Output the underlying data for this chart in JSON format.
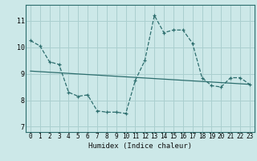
{
  "xlabel": "Humidex (Indice chaleur)",
  "bg_color": "#cce8e8",
  "grid_color": "#aacfcf",
  "line_color": "#2d6e6e",
  "xlim": [
    -0.5,
    23.5
  ],
  "ylim": [
    6.8,
    11.6
  ],
  "yticks": [
    7,
    8,
    9,
    10,
    11
  ],
  "xticks": [
    0,
    1,
    2,
    3,
    4,
    5,
    6,
    7,
    8,
    9,
    10,
    11,
    12,
    13,
    14,
    15,
    16,
    17,
    18,
    19,
    20,
    21,
    22,
    23
  ],
  "curve1_x": [
    0,
    1,
    2,
    3,
    4,
    5,
    6,
    7,
    8,
    9,
    10,
    11,
    12,
    13,
    14,
    15,
    16,
    17,
    18,
    19,
    20,
    21,
    22,
    23
  ],
  "curve1_y": [
    10.25,
    10.05,
    9.45,
    9.35,
    8.3,
    8.15,
    8.2,
    7.6,
    7.55,
    7.55,
    7.5,
    8.75,
    9.5,
    11.2,
    10.55,
    10.65,
    10.65,
    10.15,
    8.85,
    8.55,
    8.5,
    8.85,
    8.85,
    8.6
  ],
  "curve2_x": [
    0,
    23
  ],
  "curve2_y": [
    9.1,
    8.6
  ],
  "tick_fontsize": 5.5,
  "xlabel_fontsize": 6.5
}
